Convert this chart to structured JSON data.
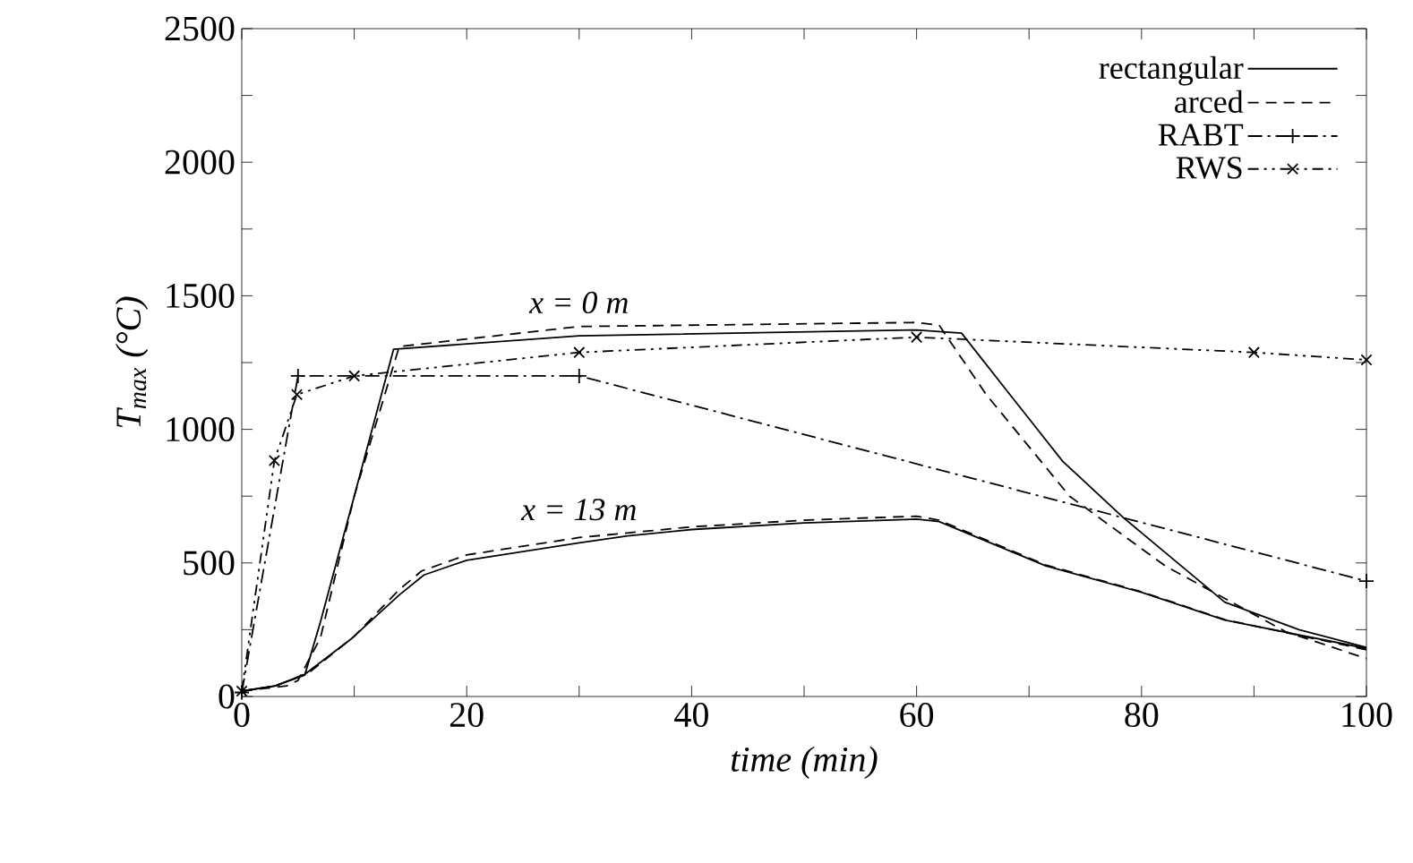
{
  "chart_data": {
    "type": "line",
    "xlabel": "time (min)",
    "ylabel": "T$_{max}$ (°C)",
    "xlim": [
      0,
      100
    ],
    "ylim": [
      0,
      2500
    ],
    "xticks": [
      0,
      {
        "value": 10,
        "label": null
      },
      20,
      {
        "value": 30,
        "label": null
      },
      40,
      {
        "value": 50,
        "label": null
      },
      60,
      {
        "value": 70,
        "label": null
      },
      80,
      {
        "value": 90,
        "label": null
      },
      100
    ],
    "yticks": [
      0,
      {
        "value": 250,
        "label": null
      },
      500,
      {
        "value": 750,
        "label": null
      },
      1000,
      {
        "value": 1250,
        "label": null
      },
      1500,
      {
        "value": 1750,
        "label": null
      },
      2000,
      {
        "value": 2250,
        "label": null
      },
      2500
    ],
    "grid": false,
    "legend": "top right",
    "series": [
      {
        "name": "rectangular",
        "color": "#000000",
        "line_style": "solid",
        "marker": "none",
        "x": [
          0,
          3,
          5.6,
          7,
          10,
          13.5,
          30,
          60,
          64,
          68.3,
          73,
          78.4,
          87.4,
          94,
          100
        ],
        "values": [
          20,
          40,
          80,
          280,
          750,
          1300,
          1350,
          1372,
          1360,
          1130,
          880,
          669,
          353,
          250,
          184
        ]
      },
      {
        "name": "arced",
        "color": "#000000",
        "line_style": "dashed",
        "marker": "none",
        "x": [
          0,
          4,
          5,
          7,
          10,
          14,
          30,
          60,
          62,
          66.2,
          73.6,
          82.1,
          92.8,
          100
        ],
        "values": [
          20,
          40,
          60,
          220,
          750,
          1310,
          1385,
          1400,
          1390,
          1130,
          750,
          489,
          243,
          142
        ]
      },
      {
        "name": "RABT",
        "color": "#000000",
        "line_style": "dashdot",
        "marker": "plus",
        "x": [
          0,
          5,
          30,
          100
        ],
        "values": [
          15,
          1200,
          1200,
          432
        ]
      },
      {
        "name": "RWS",
        "color": "#000000",
        "line_style": "dashdotdot",
        "marker": "cross",
        "x": [
          0,
          2.9,
          4.9,
          10,
          30,
          60,
          90,
          100
        ],
        "values": [
          20,
          883,
          1130,
          1200,
          1288,
          1345,
          1288,
          1260
        ]
      },
      {
        "color": "#000000",
        "line_style": "solid",
        "marker": "none",
        "x": [
          0,
          3,
          5.6,
          9.8,
          14,
          16.2,
          20,
          30,
          34.3,
          40,
          50,
          60,
          62,
          71.5,
          80,
          87.4,
          100
        ],
        "values": [
          20,
          40,
          83,
          218,
          380,
          455,
          510,
          575,
          601,
          625,
          650,
          664,
          655,
          489,
          390,
          286,
          180
        ]
      },
      {
        "color": "#000000",
        "line_style": "dashed",
        "marker": "none",
        "x": [
          0,
          3,
          6,
          10,
          14,
          16,
          20,
          30,
          40,
          50,
          60,
          62,
          71.5,
          80,
          87.4,
          100
        ],
        "values": [
          20,
          40,
          90,
          225,
          400,
          470,
          530,
          595,
          635,
          660,
          675,
          660,
          492,
          392,
          288,
          175
        ]
      }
    ],
    "annotations": [
      {
        "text": "x = 0 m",
        "x": 30,
        "y": 1350
      },
      {
        "text": "x = 13 m",
        "x": 30,
        "y": 575
      }
    ]
  }
}
